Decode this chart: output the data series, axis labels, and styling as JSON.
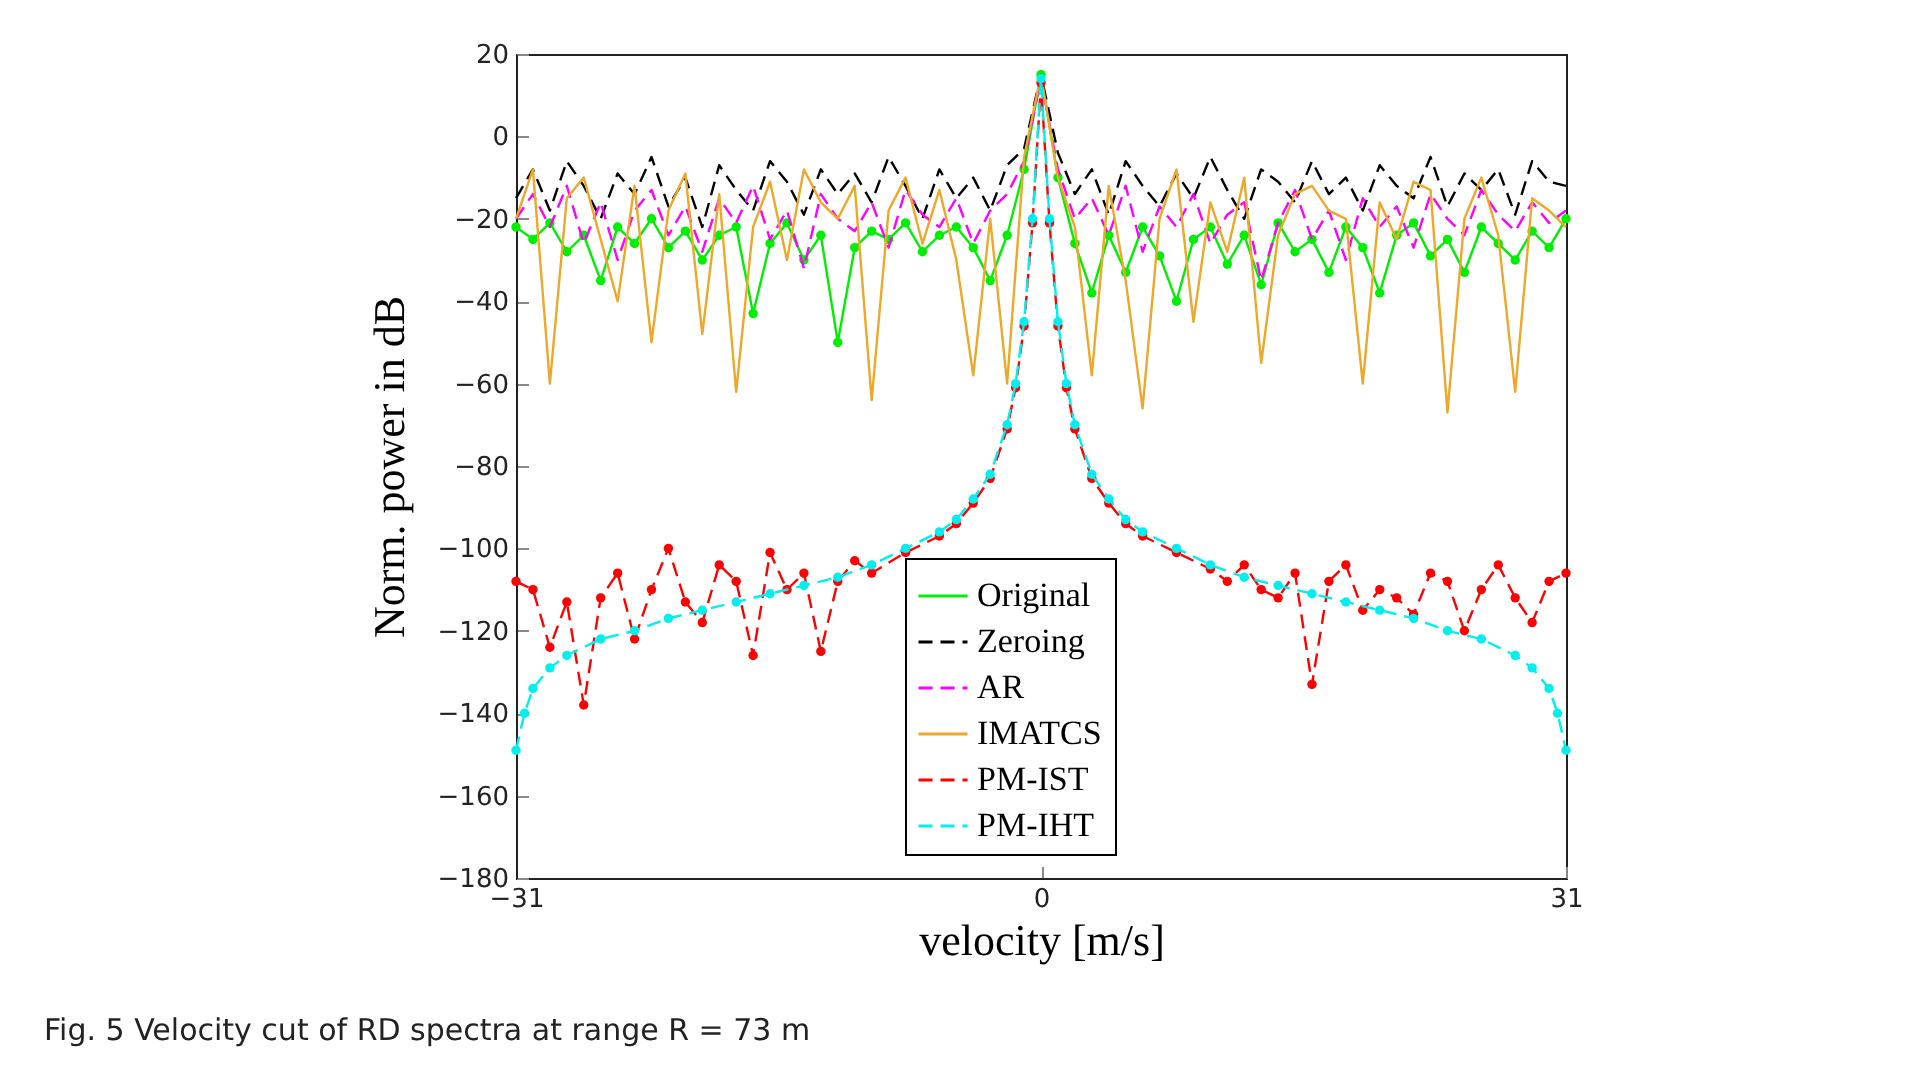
{
  "chart_data": {
    "type": "line",
    "xlabel": "velocity [m/s]",
    "ylabel": "Norm.  power in dB",
    "annotations": [
      "Fig. 5  Velocity cut of RD spectra at range R = 73 m"
    ],
    "xlim": [
      -31,
      31
    ],
    "xticks": [
      -31,
      0,
      31
    ],
    "ylim": [
      -180,
      20
    ],
    "yticks": [
      -180,
      -160,
      -140,
      -120,
      -100,
      -80,
      -60,
      -40,
      -20,
      0,
      20
    ],
    "grid": false,
    "legend": "bottom",
    "series": [
      {
        "name": "Original",
        "color": "#00ee00",
        "marker": "circle",
        "line_style": "solid",
        "x": [
          -31,
          -30,
          -29,
          -28,
          -27,
          -26,
          -25,
          -24,
          -23,
          -22,
          -21,
          -20,
          -19,
          -18,
          -17,
          -16,
          -15,
          -14,
          -13,
          -12,
          -11,
          -10,
          -9,
          -8,
          -7,
          -6,
          -5,
          -4,
          -3,
          -2,
          -1,
          0,
          1,
          2,
          3,
          4,
          5,
          6,
          7,
          8,
          9,
          10,
          11,
          12,
          13,
          14,
          15,
          16,
          17,
          18,
          19,
          20,
          21,
          22,
          23,
          24,
          25,
          26,
          27,
          28,
          29,
          30,
          31
        ],
        "values": [
          -22,
          -25,
          -21,
          -28,
          -24,
          -35,
          -22,
          -26,
          -20,
          -27,
          -23,
          -30,
          -24,
          -22,
          -43,
          -26,
          -21,
          -30,
          -24,
          -50,
          -27,
          -23,
          -25,
          -21,
          -28,
          -24,
          -22,
          -27,
          -35,
          -24,
          -8,
          15,
          -10,
          -26,
          -38,
          -24,
          -33,
          -22,
          -29,
          -40,
          -25,
          -22,
          -31,
          -24,
          -36,
          -21,
          -28,
          -25,
          -33,
          -22,
          -27,
          -38,
          -24,
          -21,
          -29,
          -25,
          -33,
          -22,
          -26,
          -30,
          -23,
          -27,
          -20
        ]
      },
      {
        "name": "Zeroing",
        "color": "#000000",
        "marker": "none",
        "line_style": "dashed",
        "x": [
          -31,
          -30,
          -29,
          -28,
          -27,
          -26,
          -25,
          -24,
          -23,
          -22,
          -21,
          -20,
          -19,
          -18,
          -17,
          -16,
          -15,
          -14,
          -13,
          -12,
          -11,
          -10,
          -9,
          -8,
          -7,
          -6,
          -5,
          -4,
          -3,
          -2,
          -1,
          0,
          1,
          2,
          3,
          4,
          5,
          6,
          7,
          8,
          9,
          10,
          11,
          12,
          13,
          14,
          15,
          16,
          17,
          18,
          19,
          20,
          21,
          22,
          23,
          24,
          25,
          26,
          27,
          28,
          29,
          30,
          31
        ],
        "values": [
          -15,
          -8,
          -18,
          -6,
          -12,
          -20,
          -9,
          -14,
          -5,
          -17,
          -10,
          -22,
          -7,
          -13,
          -18,
          -6,
          -11,
          -19,
          -8,
          -14,
          -9,
          -16,
          -5,
          -12,
          -20,
          -8,
          -15,
          -10,
          -18,
          -7,
          -3,
          15,
          -4,
          -14,
          -8,
          -19,
          -6,
          -12,
          -17,
          -9,
          -15,
          -5,
          -13,
          -20,
          -8,
          -11,
          -16,
          -6,
          -14,
          -10,
          -18,
          -7,
          -12,
          -15,
          -5,
          -17,
          -9,
          -13,
          -8,
          -19,
          -6,
          -11,
          -12
        ]
      },
      {
        "name": "AR",
        "color": "#ff00ff",
        "marker": "none",
        "line_style": "dashed",
        "x": [
          -31,
          -30,
          -29,
          -28,
          -27,
          -26,
          -25,
          -24,
          -23,
          -22,
          -21,
          -20,
          -19,
          -18,
          -17,
          -16,
          -15,
          -14,
          -13,
          -12,
          -11,
          -10,
          -9,
          -8,
          -7,
          -6,
          -5,
          -4,
          -3,
          -2,
          -1,
          0,
          1,
          2,
          3,
          4,
          5,
          6,
          7,
          8,
          9,
          10,
          11,
          12,
          13,
          14,
          15,
          16,
          17,
          18,
          19,
          20,
          21,
          22,
          23,
          24,
          25,
          26,
          27,
          28,
          29,
          30,
          31
        ],
        "values": [
          -20,
          -14,
          -22,
          -12,
          -26,
          -16,
          -30,
          -18,
          -13,
          -24,
          -17,
          -28,
          -15,
          -21,
          -12,
          -25,
          -18,
          -32,
          -14,
          -20,
          -23,
          -16,
          -27,
          -13,
          -19,
          -22,
          -15,
          -26,
          -18,
          -14,
          -6,
          14,
          -8,
          -20,
          -15,
          -24,
          -12,
          -28,
          -17,
          -22,
          -14,
          -26,
          -19,
          -16,
          -35,
          -21,
          -13,
          -25,
          -18,
          -30,
          -15,
          -22,
          -17,
          -27,
          -14,
          -20,
          -24,
          -13,
          -19,
          -23,
          -16,
          -21,
          -18
        ]
      },
      {
        "name": "IMATCS",
        "color": "#eda82a",
        "marker": "none",
        "line_style": "solid",
        "x": [
          -31,
          -30,
          -29,
          -28,
          -27,
          -26,
          -25,
          -24,
          -23,
          -22,
          -21,
          -20,
          -19,
          -18,
          -17,
          -16,
          -15,
          -14,
          -13,
          -12,
          -11,
          -10,
          -9,
          -8,
          -7,
          -6,
          -5,
          -4,
          -3,
          -2,
          -1,
          0,
          1,
          2,
          3,
          4,
          5,
          6,
          7,
          8,
          9,
          10,
          11,
          12,
          13,
          14,
          15,
          16,
          17,
          18,
          19,
          20,
          21,
          22,
          23,
          24,
          25,
          26,
          27,
          28,
          29,
          30,
          31
        ],
        "values": [
          -20,
          -8,
          -60,
          -15,
          -10,
          -25,
          -40,
          -12,
          -50,
          -18,
          -9,
          -48,
          -14,
          -62,
          -22,
          -11,
          -30,
          -8,
          -16,
          -20,
          -12,
          -64,
          -18,
          -10,
          -26,
          -13,
          -30,
          -58,
          -20,
          -60,
          -5,
          15,
          -10,
          -22,
          -58,
          -12,
          -35,
          -66,
          -20,
          -8,
          -45,
          -16,
          -28,
          -10,
          -55,
          -24,
          -14,
          -12,
          -18,
          -20,
          -60,
          -16,
          -25,
          -11,
          -13,
          -67,
          -20,
          -10,
          -24,
          -62,
          -15,
          -18,
          -22
        ]
      },
      {
        "name": "PM-IST",
        "color": "#ff0000",
        "marker": "circle",
        "line_style": "dashed",
        "x": [
          -31,
          -30,
          -29,
          -28,
          -27,
          -26,
          -25,
          -24,
          -23,
          -22,
          -21,
          -20,
          -19,
          -18,
          -17,
          -16,
          -15,
          -14,
          -13,
          -12,
          -11,
          -10,
          -8,
          -6,
          -5,
          -4,
          -3,
          -2,
          -1.5,
          -1,
          -0.5,
          0,
          0.5,
          1,
          1.5,
          2,
          3,
          4,
          5,
          6,
          8,
          10,
          11,
          12,
          13,
          14,
          15,
          16,
          17,
          18,
          19,
          20,
          21,
          22,
          23,
          24,
          25,
          26,
          27,
          28,
          29,
          30,
          31
        ],
        "values": [
          -108,
          -110,
          -124,
          -113,
          -138,
          -112,
          -106,
          -122,
          -110,
          -100,
          -113,
          -118,
          -104,
          -108,
          -126,
          -101,
          -110,
          -106,
          -125,
          -108,
          -103,
          -106,
          -101,
          -97,
          -94,
          -89,
          -83,
          -71,
          -61,
          -46,
          -21,
          13,
          -21,
          -46,
          -61,
          -71,
          -83,
          -89,
          -94,
          -97,
          -101,
          -105,
          -108,
          -104,
          -110,
          -112,
          -106,
          -133,
          -108,
          -104,
          -115,
          -110,
          -112,
          -116,
          -106,
          -108,
          -120,
          -110,
          -104,
          -112,
          -118,
          -108,
          -106
        ]
      },
      {
        "name": "PM-IHT",
        "color": "#00eeee",
        "marker": "circle",
        "line_style": "dashed",
        "x": [
          -31,
          -30.5,
          -30,
          -29,
          -28,
          -26,
          -24,
          -22,
          -20,
          -18,
          -16,
          -14,
          -12,
          -10,
          -8,
          -6,
          -5,
          -4,
          -3,
          -2,
          -1.5,
          -1,
          -0.5,
          0,
          0.5,
          1,
          1.5,
          2,
          3,
          4,
          5,
          6,
          8,
          10,
          12,
          14,
          16,
          18,
          20,
          22,
          24,
          26,
          28,
          29,
          30,
          30.5,
          31
        ],
        "values": [
          -149,
          -140,
          -134,
          -129,
          -126,
          -122,
          -120,
          -117,
          -115,
          -113,
          -111,
          -109,
          -107,
          -104,
          -100,
          -96,
          -93,
          -88,
          -82,
          -70,
          -60,
          -45,
          -20,
          14,
          -20,
          -45,
          -60,
          -70,
          -82,
          -88,
          -93,
          -96,
          -100,
          -104,
          -107,
          -109,
          -111,
          -113,
          -115,
          -117,
          -120,
          -122,
          -126,
          -129,
          -134,
          -140,
          -149
        ]
      }
    ]
  }
}
